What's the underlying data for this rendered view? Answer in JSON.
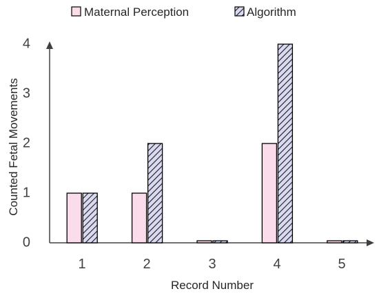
{
  "chart_data": {
    "type": "bar",
    "categories": [
      "1",
      "2",
      "3",
      "4",
      "5"
    ],
    "series": [
      {
        "name": "Maternal Perception",
        "values": [
          1,
          1,
          0,
          2,
          0
        ],
        "color": "#fadcea",
        "pattern": "solid"
      },
      {
        "name": "Algorithm",
        "values": [
          1,
          2,
          0,
          4,
          0
        ],
        "color": "#d9d9f2",
        "pattern": "diagonal-hatch"
      }
    ],
    "xlabel": "Record Number",
    "ylabel": "Counted Fetal Movements",
    "ylim": [
      0,
      4
    ],
    "yticks": [
      "0",
      "1",
      "2",
      "3",
      "4"
    ],
    "grid": false,
    "legend_position": "top",
    "axis_color": "#404040",
    "bar_outline_color": "#000000"
  }
}
